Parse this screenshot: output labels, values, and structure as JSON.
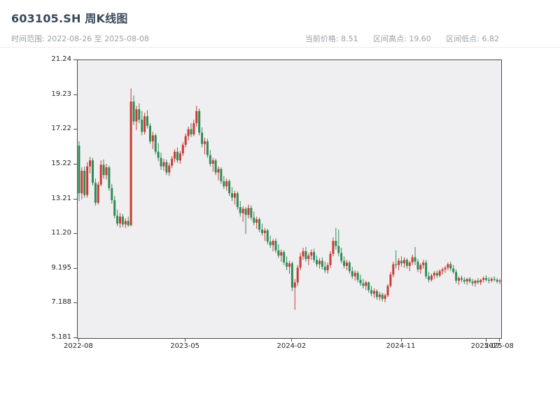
{
  "header": {
    "title": "603105.SH 周K线图",
    "date_range_text": "时间范围: 2022-08-26 至 2025-08-08",
    "stats": [
      "当前价格: 8.51",
      "区间高点: 19.60",
      "区间低点: 6.82"
    ]
  },
  "chart_data": {
    "type": "candlestick",
    "symbol": "603105.SH",
    "title": "603105.SH 周K线图",
    "frequency": "weekly",
    "start_date": "2022-08-26",
    "end_date": "2025-08-08",
    "current_price": 8.51,
    "range_high": 19.6,
    "range_low": 6.82,
    "y_min": 5.181,
    "y_max": 21.24,
    "grid": false,
    "legend": false,
    "y_ticks": [
      {
        "label": "21.24",
        "value": 21.24
      },
      {
        "label": "19.23",
        "value": 19.23
      },
      {
        "label": "17.22",
        "value": 17.22
      },
      {
        "label": "15.22",
        "value": 15.22
      },
      {
        "label": "13.21",
        "value": 13.21
      },
      {
        "label": "11.20",
        "value": 11.2
      },
      {
        "label": "9.195",
        "value": 9.195
      },
      {
        "label": "7.188",
        "value": 7.188
      },
      {
        "label": "5.181",
        "value": 5.181
      }
    ],
    "x_ticks": [
      {
        "label": "2022-08",
        "week": 0
      },
      {
        "label": "2023-05",
        "week": 39
      },
      {
        "label": "2024-02",
        "week": 78
      },
      {
        "label": "2024-11",
        "week": 118
      },
      {
        "label": "2025-07",
        "week": 149
      },
      {
        "label": "2025-08",
        "week": 154
      }
    ],
    "colors": {
      "up": "#cb3a32",
      "down": "#2e8b57",
      "plot_bg": "#efeff1",
      "spine": "#4a4a4a"
    },
    "ohlc_columns": [
      "open",
      "high",
      "low",
      "close"
    ],
    "ohlc": [
      [
        16.3,
        16.55,
        13.1,
        13.55
      ],
      [
        13.55,
        15.05,
        13.2,
        14.85
      ],
      [
        14.85,
        15.1,
        13.3,
        13.45
      ],
      [
        13.45,
        15.35,
        13.3,
        15.1
      ],
      [
        15.1,
        15.65,
        14.7,
        15.45
      ],
      [
        15.45,
        15.6,
        14.0,
        14.15
      ],
      [
        14.15,
        14.4,
        12.85,
        13.0
      ],
      [
        13.0,
        14.2,
        12.9,
        14.05
      ],
      [
        14.05,
        15.45,
        13.95,
        15.2
      ],
      [
        15.2,
        15.5,
        14.4,
        14.6
      ],
      [
        14.6,
        15.25,
        14.35,
        15.05
      ],
      [
        15.05,
        15.15,
        13.7,
        13.85
      ],
      [
        13.85,
        14.1,
        12.95,
        13.15
      ],
      [
        13.15,
        13.4,
        12.1,
        12.25
      ],
      [
        12.25,
        12.6,
        11.65,
        11.8
      ],
      [
        11.8,
        12.4,
        11.55,
        12.2
      ],
      [
        12.2,
        12.35,
        11.6,
        11.75
      ],
      [
        11.75,
        12.1,
        11.55,
        11.95
      ],
      [
        11.95,
        12.2,
        11.6,
        11.7
      ],
      [
        11.7,
        19.6,
        11.65,
        18.85
      ],
      [
        18.85,
        19.2,
        17.5,
        17.7
      ],
      [
        17.7,
        18.6,
        17.2,
        18.4
      ],
      [
        18.4,
        18.75,
        17.6,
        17.8
      ],
      [
        17.8,
        18.3,
        16.9,
        17.1
      ],
      [
        17.1,
        18.2,
        16.95,
        18.0
      ],
      [
        18.0,
        18.35,
        17.3,
        17.45
      ],
      [
        17.45,
        17.6,
        16.4,
        16.55
      ],
      [
        16.55,
        17.1,
        16.1,
        16.9
      ],
      [
        16.9,
        17.0,
        15.8,
        15.95
      ],
      [
        15.95,
        16.45,
        15.4,
        15.6
      ],
      [
        15.6,
        15.9,
        14.9,
        15.1
      ],
      [
        15.1,
        15.55,
        14.85,
        15.35
      ],
      [
        15.35,
        15.5,
        14.6,
        14.75
      ],
      [
        14.75,
        15.3,
        14.55,
        15.15
      ],
      [
        15.15,
        15.7,
        15.0,
        15.55
      ],
      [
        15.55,
        16.1,
        15.35,
        15.95
      ],
      [
        15.95,
        16.2,
        15.3,
        15.45
      ],
      [
        15.45,
        16.0,
        15.25,
        15.85
      ],
      [
        15.85,
        16.5,
        15.7,
        16.35
      ],
      [
        16.35,
        17.0,
        16.2,
        16.85
      ],
      [
        16.85,
        17.4,
        16.6,
        17.25
      ],
      [
        17.25,
        17.6,
        16.8,
        16.95
      ],
      [
        16.95,
        17.8,
        16.85,
        17.6
      ],
      [
        17.6,
        18.6,
        17.4,
        18.3
      ],
      [
        18.3,
        18.45,
        16.9,
        17.05
      ],
      [
        17.05,
        17.35,
        16.2,
        16.4
      ],
      [
        16.4,
        16.75,
        15.8,
        16.55
      ],
      [
        16.55,
        16.7,
        15.6,
        15.75
      ],
      [
        15.75,
        16.05,
        15.1,
        15.25
      ],
      [
        15.25,
        15.6,
        14.8,
        15.45
      ],
      [
        15.45,
        15.55,
        14.6,
        14.75
      ],
      [
        14.75,
        15.1,
        14.3,
        14.95
      ],
      [
        14.95,
        15.05,
        14.1,
        14.25
      ],
      [
        14.25,
        14.55,
        13.8,
        13.95
      ],
      [
        13.95,
        14.4,
        13.7,
        14.25
      ],
      [
        14.25,
        14.35,
        13.4,
        13.55
      ],
      [
        13.55,
        13.9,
        13.1,
        13.3
      ],
      [
        13.3,
        13.7,
        12.9,
        13.55
      ],
      [
        13.55,
        13.65,
        12.6,
        12.75
      ],
      [
        12.75,
        13.1,
        12.2,
        12.4
      ],
      [
        12.4,
        12.8,
        11.9,
        12.65
      ],
      [
        12.65,
        12.75,
        11.2,
        12.3
      ],
      [
        12.3,
        12.9,
        12.1,
        12.7
      ],
      [
        12.7,
        12.85,
        12.0,
        12.15
      ],
      [
        12.15,
        12.5,
        11.7,
        11.85
      ],
      [
        11.85,
        12.2,
        11.5,
        12.05
      ],
      [
        12.05,
        12.15,
        11.3,
        11.45
      ],
      [
        11.45,
        11.8,
        11.1,
        11.25
      ],
      [
        11.25,
        11.55,
        10.8,
        11.4
      ],
      [
        11.4,
        11.5,
        10.6,
        10.75
      ],
      [
        10.75,
        11.1,
        10.4,
        10.55
      ],
      [
        10.55,
        10.9,
        10.2,
        10.8
      ],
      [
        10.8,
        10.95,
        10.1,
        10.25
      ],
      [
        10.25,
        10.6,
        9.8,
        9.95
      ],
      [
        9.95,
        10.3,
        9.6,
        10.15
      ],
      [
        10.15,
        10.25,
        9.4,
        9.55
      ],
      [
        9.55,
        9.9,
        9.1,
        9.3
      ],
      [
        9.3,
        9.65,
        8.9,
        9.5
      ],
      [
        9.5,
        9.6,
        7.9,
        8.1
      ],
      [
        8.1,
        8.6,
        6.82,
        8.4
      ],
      [
        8.4,
        9.4,
        8.2,
        9.25
      ],
      [
        9.25,
        10.1,
        9.1,
        9.9
      ],
      [
        9.9,
        10.4,
        9.7,
        10.2
      ],
      [
        10.2,
        10.45,
        9.6,
        9.75
      ],
      [
        9.75,
        10.1,
        9.4,
        9.95
      ],
      [
        9.95,
        10.3,
        9.7,
        10.15
      ],
      [
        10.15,
        10.35,
        9.55,
        9.7
      ],
      [
        9.7,
        9.95,
        9.3,
        9.45
      ],
      [
        9.45,
        9.8,
        9.2,
        9.65
      ],
      [
        9.65,
        9.85,
        9.15,
        9.3
      ],
      [
        9.3,
        9.6,
        8.95,
        9.1
      ],
      [
        9.1,
        9.55,
        8.9,
        9.4
      ],
      [
        9.4,
        10.2,
        9.25,
        10.05
      ],
      [
        10.05,
        11.0,
        9.9,
        10.8
      ],
      [
        10.8,
        11.55,
        10.3,
        10.5
      ],
      [
        10.5,
        11.45,
        9.9,
        10.1
      ],
      [
        10.1,
        10.4,
        9.5,
        9.65
      ],
      [
        9.65,
        9.9,
        9.2,
        9.35
      ],
      [
        9.35,
        9.7,
        9.1,
        9.55
      ],
      [
        9.55,
        9.65,
        8.9,
        9.05
      ],
      [
        9.05,
        9.3,
        8.6,
        8.75
      ],
      [
        8.75,
        9.1,
        8.5,
        8.95
      ],
      [
        8.95,
        9.05,
        8.4,
        8.55
      ],
      [
        8.55,
        8.85,
        8.2,
        8.35
      ],
      [
        8.35,
        8.6,
        8.05,
        8.2
      ],
      [
        8.2,
        8.5,
        7.95,
        8.4
      ],
      [
        8.4,
        8.45,
        7.8,
        7.95
      ],
      [
        7.95,
        8.2,
        7.6,
        7.75
      ],
      [
        7.75,
        8.05,
        7.5,
        7.9
      ],
      [
        7.9,
        8.0,
        7.4,
        7.55
      ],
      [
        7.55,
        7.85,
        7.35,
        7.7
      ],
      [
        7.7,
        7.8,
        7.3,
        7.45
      ],
      [
        7.45,
        7.75,
        7.25,
        7.65
      ],
      [
        7.65,
        8.3,
        7.55,
        8.2
      ],
      [
        8.2,
        9.0,
        8.1,
        8.85
      ],
      [
        8.85,
        9.6,
        8.7,
        9.45
      ],
      [
        9.45,
        10.25,
        9.2,
        9.4
      ],
      [
        9.4,
        9.8,
        9.1,
        9.65
      ],
      [
        9.65,
        9.9,
        9.3,
        9.5
      ],
      [
        9.5,
        9.85,
        9.25,
        9.7
      ],
      [
        9.7,
        9.8,
        9.2,
        9.35
      ],
      [
        9.35,
        9.65,
        9.05,
        9.55
      ],
      [
        9.55,
        10.0,
        9.4,
        9.85
      ],
      [
        9.85,
        10.45,
        9.4,
        9.6
      ],
      [
        9.6,
        9.75,
        9.0,
        9.15
      ],
      [
        9.15,
        9.5,
        8.9,
        9.4
      ],
      [
        9.4,
        9.7,
        9.2,
        9.55
      ],
      [
        9.55,
        9.7,
        8.6,
        8.75
      ],
      [
        8.75,
        9.0,
        8.4,
        8.55
      ],
      [
        8.55,
        8.9,
        8.45,
        8.8
      ],
      [
        8.8,
        9.05,
        8.6,
        8.95
      ],
      [
        8.95,
        9.1,
        8.65,
        8.8
      ],
      [
        8.8,
        9.15,
        8.7,
        9.05
      ],
      [
        9.05,
        9.25,
        8.85,
        9.15
      ],
      [
        9.15,
        9.35,
        8.95,
        9.25
      ],
      [
        9.25,
        9.55,
        9.1,
        9.45
      ],
      [
        9.45,
        9.6,
        9.05,
        9.2
      ],
      [
        9.2,
        9.4,
        8.9,
        9.0
      ],
      [
        9.0,
        9.15,
        8.35,
        8.5
      ],
      [
        8.5,
        8.75,
        8.25,
        8.65
      ],
      [
        8.65,
        8.8,
        8.4,
        8.55
      ],
      [
        8.55,
        8.7,
        8.3,
        8.45
      ],
      [
        8.45,
        8.65,
        8.25,
        8.6
      ],
      [
        8.6,
        8.7,
        8.35,
        8.45
      ],
      [
        8.45,
        8.6,
        8.2,
        8.35
      ],
      [
        8.35,
        8.55,
        8.15,
        8.5
      ],
      [
        8.5,
        8.65,
        8.3,
        8.4
      ],
      [
        8.4,
        8.6,
        8.25,
        8.55
      ],
      [
        8.55,
        8.75,
        8.4,
        8.65
      ],
      [
        8.65,
        8.8,
        8.45,
        8.55
      ],
      [
        8.55,
        8.7,
        8.35,
        8.5
      ],
      [
        8.5,
        8.7,
        8.4,
        8.6
      ],
      [
        8.6,
        8.75,
        8.45,
        8.55
      ],
      [
        8.55,
        8.65,
        8.35,
        8.45
      ],
      [
        8.45,
        8.6,
        8.3,
        8.51
      ]
    ]
  }
}
